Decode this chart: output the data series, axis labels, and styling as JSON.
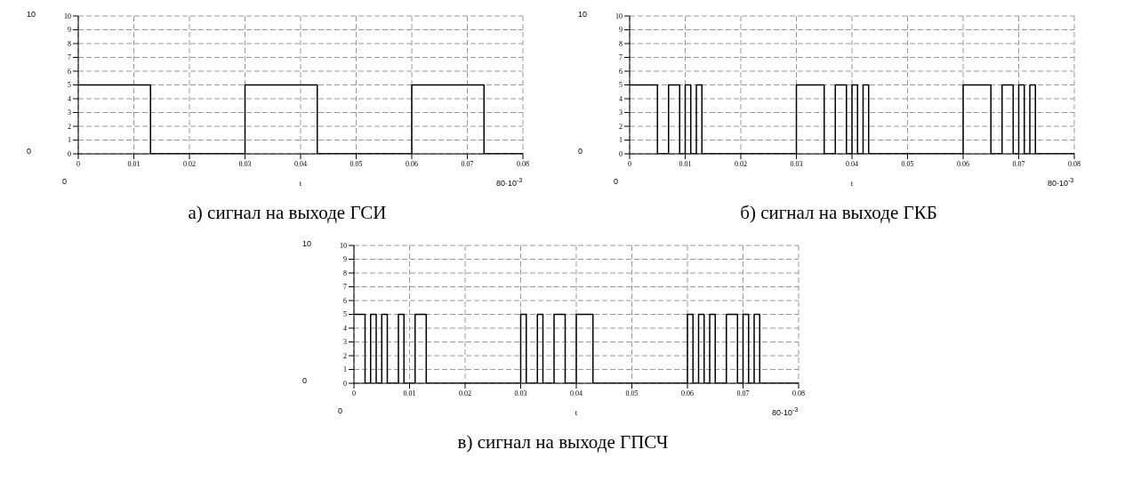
{
  "chart_data": [
    {
      "type": "step",
      "title": "а) сигнал на выходе ГСИ",
      "xlabel": "t",
      "annotations": [
        "10",
        "0",
        "0",
        "80·10$^{-3}$"
      ],
      "x": [
        0,
        0.013,
        0.03,
        0.043,
        0.06,
        0.073,
        0.08
      ],
      "series": [
        {
          "color": "#000000",
          "values": [
            5,
            0,
            5,
            0,
            5,
            0,
            0
          ]
        }
      ],
      "xlim": [
        0,
        0.08
      ],
      "xticks": [
        0,
        0.01,
        0.02,
        0.03,
        0.04,
        0.05,
        0.06,
        0.07,
        0.08
      ],
      "ylim": [
        0,
        10
      ],
      "yticks": [
        0,
        1,
        2,
        3,
        4,
        5,
        6,
        7,
        8,
        9,
        10
      ],
      "grid": true,
      "legend": false
    },
    {
      "type": "step",
      "title": "б) сигнал на выходе ГКБ",
      "xlabel": "t",
      "annotations": [
        "10",
        "0",
        "0",
        "80·10$^{-3}$"
      ],
      "x": [
        0,
        0.005,
        0.007,
        0.009,
        0.01,
        0.011,
        0.012,
        0.013,
        0.03,
        0.035,
        0.037,
        0.039,
        0.04,
        0.041,
        0.042,
        0.043,
        0.06,
        0.065,
        0.067,
        0.069,
        0.07,
        0.071,
        0.072,
        0.073,
        0.08
      ],
      "series": [
        {
          "color": "#000000",
          "values": [
            5,
            0,
            5,
            0,
            5,
            0,
            5,
            0,
            5,
            0,
            5,
            0,
            5,
            0,
            5,
            0,
            5,
            0,
            5,
            0,
            5,
            0,
            5,
            0,
            0
          ]
        }
      ],
      "xlim": [
        0,
        0.08
      ],
      "xticks": [
        0,
        0.01,
        0.02,
        0.03,
        0.04,
        0.05,
        0.06,
        0.07,
        0.08
      ],
      "ylim": [
        0,
        10
      ],
      "yticks": [
        0,
        1,
        2,
        3,
        4,
        5,
        6,
        7,
        8,
        9,
        10
      ],
      "grid": true,
      "legend": false
    },
    {
      "type": "step",
      "title": "в) сигнал на выходе ГПСЧ",
      "xlabel": "t",
      "annotations": [
        "10",
        "0",
        "0",
        "80·10$^{-3}$"
      ],
      "x": [
        0,
        0.002,
        0.003,
        0.004,
        0.005,
        0.006,
        0.008,
        0.009,
        0.011,
        0.013,
        0.03,
        0.031,
        0.033,
        0.034,
        0.036,
        0.038,
        0.04,
        0.043,
        0.06,
        0.061,
        0.062,
        0.063,
        0.064,
        0.065,
        0.067,
        0.069,
        0.07,
        0.071,
        0.072,
        0.073,
        0.08
      ],
      "series": [
        {
          "color": "#000000",
          "values": [
            5,
            0,
            5,
            0,
            5,
            0,
            5,
            0,
            5,
            0,
            5,
            0,
            5,
            0,
            5,
            0,
            5,
            0,
            5,
            0,
            5,
            0,
            5,
            0,
            5,
            0,
            5,
            0,
            5,
            0,
            0
          ]
        }
      ],
      "xlim": [
        0,
        0.08
      ],
      "xticks": [
        0,
        0.01,
        0.02,
        0.03,
        0.04,
        0.05,
        0.06,
        0.07,
        0.08
      ],
      "ylim": [
        0,
        10
      ],
      "yticks": [
        0,
        1,
        2,
        3,
        4,
        5,
        6,
        7,
        8,
        9,
        10
      ],
      "grid": true,
      "legend": false
    }
  ]
}
